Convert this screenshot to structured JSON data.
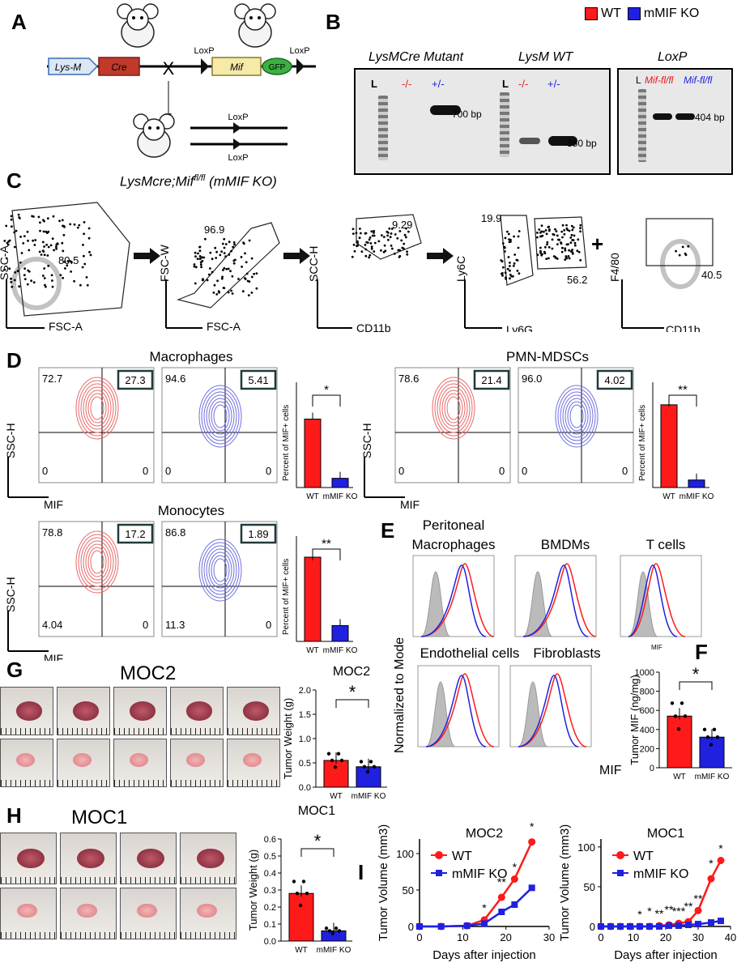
{
  "colors": {
    "wt": "#ff1a1a",
    "ko": "#2020e0",
    "contour_wt": "#e86a6a",
    "contour_ko": "#7070e0"
  },
  "panels": {
    "A": "A",
    "B": "B",
    "C": "C",
    "D": "D",
    "E": "E",
    "F": "F",
    "G": "G",
    "H": "H",
    "I": "I"
  },
  "panelA": {
    "lysm": "Lys-M",
    "cre": "Cre",
    "loxp1": "LoxP",
    "mif": "Mif",
    "gfp": "GFP",
    "loxp2": "LoxP",
    "cross": "X",
    "loxp_top": "LoxP",
    "loxp_bottom": "LoxP",
    "caption_pre": "LysMcre;Mif",
    "caption_sup": "fl/fl",
    "caption_post": " (mMIF KO)"
  },
  "legend": {
    "wt": "WT",
    "ko": "mMIF KO"
  },
  "panelB": {
    "gel1_title": "LysMCre Mutant",
    "gel2_title": "LysM WT",
    "gel3_title": "LoxP",
    "lanes1": [
      "L",
      "-/-",
      "+/-"
    ],
    "lanes2": [
      "-/-",
      "+/-"
    ],
    "ladder2": "L",
    "lane3_L": "L",
    "lane3_a": "Mif-fl/fl",
    "lane3_b": "Mif-fl/fl",
    "bp700": "700 bp",
    "bp350": "350 bp",
    "bp404": "404 bp"
  },
  "panelC": {
    "plots": [
      {
        "y": "SSC-A",
        "x": "FSC-A",
        "gate": "80.5"
      },
      {
        "y": "FSC-W",
        "x": "FSC-A",
        "gate": "96.9"
      },
      {
        "y": "SCC-H",
        "x": "CD11b",
        "gate": "9.29"
      },
      {
        "y": "Ly6C",
        "x": "Ly6G",
        "gate_a": "19.9",
        "gate_b": "56.2"
      },
      {
        "y": "F4/80",
        "x": "CD11b",
        "gate": "40.5"
      }
    ],
    "plus": "+"
  },
  "panelD": {
    "macrophages": {
      "title": "Macrophages",
      "wt": [
        "72.7",
        "27.3",
        "0",
        "0"
      ],
      "ko": [
        "94.6",
        "5.41",
        "0",
        "0"
      ],
      "y": "SSC-H",
      "x": "MIF"
    },
    "pmn": {
      "title": "PMN-MDSCs",
      "wt": [
        "78.6",
        "21.4",
        "0",
        "0"
      ],
      "ko": [
        "96.0",
        "4.02",
        "0",
        "0"
      ],
      "y": "SSC-H",
      "x": "MIF"
    },
    "mono": {
      "title": "Monocytes",
      "wt": [
        "78.8",
        "17.2",
        "4.04",
        "0"
      ],
      "ko": [
        "86.8",
        "1.89",
        "11.3",
        "0"
      ],
      "y": "SSC-H",
      "x": "MIF"
    },
    "bar_ylabel": "Percent of MIF+ cells",
    "categories": [
      "WT",
      "mMIF KO"
    ],
    "sig_mac": "*",
    "sig_pmn": "**",
    "sig_mono": "**"
  },
  "panelE": {
    "titles": [
      "Peritoneal",
      "Macrophages",
      "BMDMs",
      "T cells",
      "Endothelial cells",
      "Fibroblasts"
    ],
    "ylabel": "Normalized to Mode",
    "xlabel": "MIF",
    "xsmall": "MIF"
  },
  "panelF": {
    "ylabel": "Tumor MIF (ng/mg)",
    "ticks": [
      "0",
      "200",
      "400",
      "600",
      "800",
      "1000"
    ],
    "categories": [
      "WT",
      "mMIF KO"
    ],
    "sig": "*"
  },
  "panelG": {
    "title": "MOC2",
    "bar_title": "MOC2",
    "ylabel": "Tumor Weight (g)",
    "ticks": [
      "0.0",
      "0.5",
      "1.0",
      "1.5",
      "2.0"
    ],
    "categories": [
      "WT",
      "mMIF KO"
    ],
    "sig": "*"
  },
  "panelH": {
    "title": "MOC1",
    "bar_title": "MOC1",
    "ylabel": "Tumor Weight (g)",
    "ticks": [
      "0.0",
      "0.1",
      "0.2",
      "0.3",
      "0.4",
      "0.5",
      "0.6"
    ],
    "categories": [
      "WT",
      "mMIF KO"
    ],
    "sig": "*"
  },
  "panelI": {
    "moc2": {
      "title": "MOC2",
      "ylabel": "Tumor Volume (mm3)",
      "xlabel": "Days after injection",
      "xticks": [
        "0",
        "10",
        "20",
        "30"
      ],
      "yticks": [
        "0",
        "50",
        "100"
      ],
      "wt": "WT",
      "ko": "mMIF KO",
      "stars": [
        "*",
        "**",
        "*",
        "*"
      ]
    },
    "moc1": {
      "title": "MOC1",
      "ylabel": "Tumor Volume (mm3)",
      "xlabel": "Days after injection",
      "xticks": [
        "0",
        "10",
        "20",
        "30",
        "40"
      ],
      "yticks": [
        "0",
        "50",
        "100"
      ],
      "wt": "WT",
      "ko": "mMIF KO",
      "stars": [
        "*",
        "*",
        "**",
        "**",
        "***",
        "**",
        "**",
        "*",
        "*"
      ]
    }
  },
  "chart_data": [
    {
      "type": "bar",
      "title": "Macrophages",
      "categories": [
        "WT",
        "mMIF KO"
      ],
      "values": [
        26,
        3.5
      ],
      "ylabel": "Percent of MIF+ cells",
      "ylim": [
        0,
        40
      ]
    },
    {
      "type": "bar",
      "title": "PMN-MDSCs",
      "categories": [
        "WT",
        "mMIF KO"
      ],
      "values": [
        27.5,
        2.5
      ],
      "ylabel": "Percent of MIF+ cells",
      "ylim": [
        0,
        35
      ]
    },
    {
      "type": "bar",
      "title": "Monocytes",
      "categories": [
        "WT",
        "mMIF KO"
      ],
      "values": [
        16,
        3
      ],
      "ylabel": "Percent of MIF+ cells",
      "ylim": [
        0,
        20
      ]
    },
    {
      "type": "bar",
      "title": "",
      "categories": [
        "WT",
        "mMIF KO"
      ],
      "values": [
        540,
        320
      ],
      "ylabel": "Tumor MIF (ng/mg)",
      "ylim": [
        0,
        1000
      ]
    },
    {
      "type": "bar",
      "title": "MOC2",
      "categories": [
        "WT",
        "mMIF KO"
      ],
      "values": [
        0.55,
        0.42
      ],
      "ylabel": "Tumor Weight (g)",
      "ylim": [
        0,
        2.0
      ]
    },
    {
      "type": "bar",
      "title": "MOC1",
      "categories": [
        "WT",
        "mMIF KO"
      ],
      "values": [
        0.28,
        0.06
      ],
      "ylabel": "Tumor Weight (g)",
      "ylim": [
        0,
        0.6
      ]
    },
    {
      "type": "line",
      "title": "MOC2",
      "xlabel": "Days after injection",
      "ylabel": "Tumor Volume (mm3)",
      "xlim": [
        0,
        30
      ],
      "ylim": [
        0,
        120
      ],
      "series": [
        {
          "name": "WT",
          "x": [
            0,
            5,
            11,
            15,
            19,
            22,
            26
          ],
          "y": [
            0,
            0,
            1,
            9,
            40,
            65,
            116
          ]
        },
        {
          "name": "mMIF KO",
          "x": [
            0,
            5,
            11,
            15,
            19,
            22,
            26
          ],
          "y": [
            0,
            0,
            1,
            4,
            20,
            30,
            53
          ]
        }
      ]
    },
    {
      "type": "line",
      "title": "MOC1",
      "xlabel": "Days after injection",
      "ylabel": "Tumor Volume (mm3)",
      "xlim": [
        0,
        40
      ],
      "ylim": [
        0,
        110
      ],
      "series": [
        {
          "name": "WT",
          "x": [
            0,
            3,
            6,
            9,
            12,
            15,
            18,
            21,
            24,
            27,
            30,
            34,
            37
          ],
          "y": [
            0,
            0,
            0,
            0,
            0,
            0,
            1,
            2,
            4,
            6,
            20,
            60,
            83
          ]
        },
        {
          "name": "mMIF KO",
          "x": [
            0,
            3,
            6,
            9,
            12,
            15,
            18,
            21,
            24,
            27,
            30,
            34,
            37
          ],
          "y": [
            0,
            0,
            0,
            0,
            0,
            0,
            0,
            1,
            1,
            2,
            3,
            5,
            7
          ]
        }
      ]
    }
  ]
}
